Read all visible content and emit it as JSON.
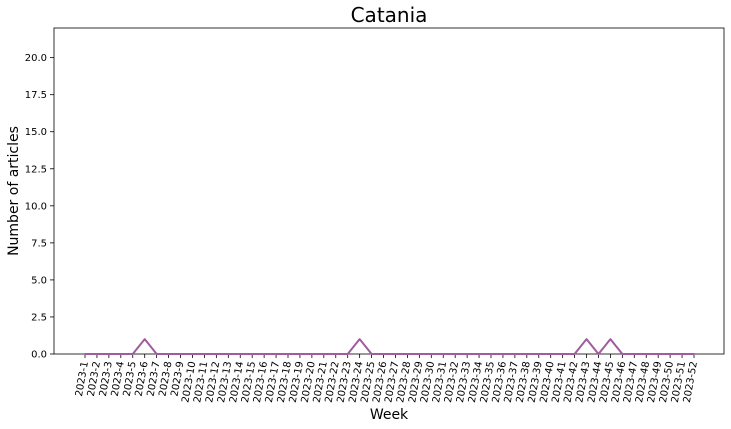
{
  "chart_data": {
    "type": "line",
    "title": "Catania",
    "xlabel": "Week",
    "ylabel": "Number of articles",
    "ylim": [
      0,
      22
    ],
    "yticks": [
      0.0,
      2.5,
      5.0,
      7.5,
      10.0,
      12.5,
      15.0,
      17.5,
      20.0
    ],
    "ytick_labels": [
      "0.0",
      "2.5",
      "5.0",
      "7.5",
      "10.0",
      "12.5",
      "15.0",
      "17.5",
      "20.0"
    ],
    "grid": false,
    "line_color": "#a05c9c",
    "categories": [
      "2023-1",
      "2023-2",
      "2023-3",
      "2023-4",
      "2023-5",
      "2023-6",
      "2023-7",
      "2023-8",
      "2023-9",
      "2023-10",
      "2023-11",
      "2023-12",
      "2023-13",
      "2023-14",
      "2023-15",
      "2023-16",
      "2023-17",
      "2023-18",
      "2023-19",
      "2023-20",
      "2023-21",
      "2023-22",
      "2023-23",
      "2023-24",
      "2023-25",
      "2023-26",
      "2023-27",
      "2023-28",
      "2023-29",
      "2023-30",
      "2023-31",
      "2023-32",
      "2023-33",
      "2023-34",
      "2023-35",
      "2023-36",
      "2023-37",
      "2023-38",
      "2023-39",
      "2023-40",
      "2023-41",
      "2023-42",
      "2023-43",
      "2023-44",
      "2023-45",
      "2023-46",
      "2023-47",
      "2023-48",
      "2023-49",
      "2023-50",
      "2023-51",
      "2023-52"
    ],
    "values": [
      0,
      0,
      0,
      0,
      0,
      1,
      0,
      0,
      0,
      0,
      0,
      0,
      0,
      0,
      0,
      0,
      0,
      0,
      0,
      0,
      0,
      0,
      0,
      1,
      0,
      0,
      0,
      0,
      0,
      0,
      0,
      0,
      0,
      0,
      0,
      0,
      0,
      0,
      0,
      0,
      0,
      0,
      1,
      0,
      1,
      0,
      0,
      0,
      0,
      0,
      0,
      0
    ]
  }
}
